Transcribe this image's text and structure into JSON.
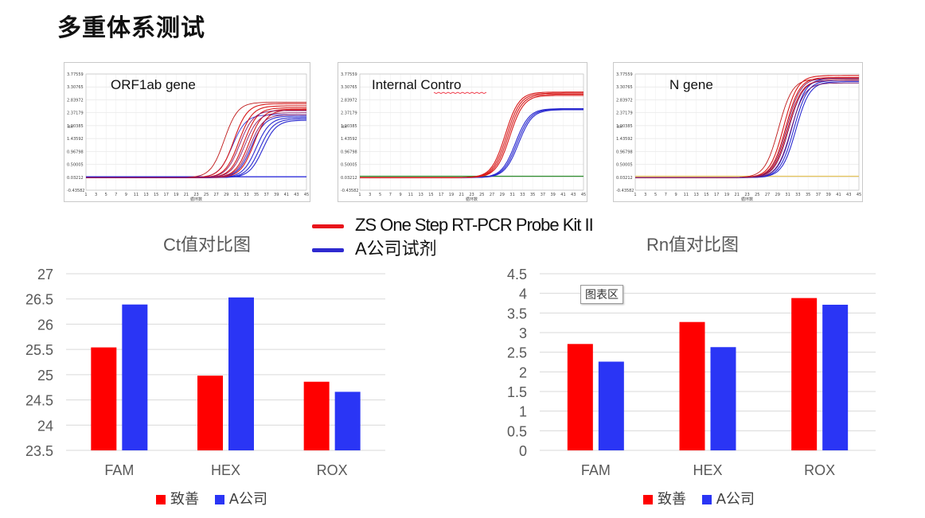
{
  "page_title": "多重体系测试",
  "pcr_panels": [
    {
      "label": "ORF1ab gene"
    },
    {
      "label": "Internal Contro"
    },
    {
      "label": "N gene"
    }
  ],
  "pcr_axis": {
    "y_ticks": [
      "3.77559",
      "3.30765",
      "2.83972",
      "2.37179",
      "1.90385",
      "1.43592",
      "0.96798",
      "0.50005",
      "0.03212",
      "-0.43582"
    ],
    "x_ticks": [
      "1",
      "3",
      "5",
      "7",
      "9",
      "11",
      "13",
      "15",
      "17",
      "19",
      "21",
      "23",
      "25",
      "27",
      "29",
      "31",
      "33",
      "35",
      "37",
      "39",
      "41",
      "43",
      "45"
    ],
    "ylabel": "Rn",
    "xlabel": "循环数"
  },
  "main_legend": {
    "items": [
      {
        "label": "ZS One Step RT-PCR Probe Kit II",
        "color": "#e8141b"
      },
      {
        "label": "A公司试剂",
        "color": "#2e2ad0"
      }
    ]
  },
  "colors": {
    "zs": "#ff0000",
    "a": "#2a35f5",
    "grid": "#d9d9d9",
    "axis_text": "#595959"
  },
  "chart_area_tag": "图表区",
  "chart_data": [
    {
      "type": "bar",
      "title": "Ct值对比图",
      "categories": [
        "FAM",
        "HEX",
        "ROX"
      ],
      "series": [
        {
          "name": "致善",
          "values": [
            25.54,
            24.98,
            24.86
          ]
        },
        {
          "name": "A公司",
          "values": [
            26.39,
            26.53,
            24.66
          ]
        }
      ],
      "ylim": [
        23.5,
        27
      ],
      "y_ticks": [
        "27",
        "26.5",
        "26",
        "25.5",
        "25",
        "24.5",
        "24",
        "23.5"
      ],
      "grid": true,
      "legend": "bottom"
    },
    {
      "type": "bar",
      "title": "Rn值对比图",
      "categories": [
        "FAM",
        "HEX",
        "ROX"
      ],
      "series": [
        {
          "name": "致善",
          "values": [
            2.71,
            3.27,
            3.88
          ]
        },
        {
          "name": "A公司",
          "values": [
            2.26,
            2.63,
            3.71
          ]
        }
      ],
      "ylim": [
        0,
        4.5
      ],
      "y_ticks": [
        "4.5",
        "4",
        "3.5",
        "3",
        "2.5",
        "2",
        "1.5",
        "1",
        "0.5",
        "0"
      ],
      "grid": true,
      "legend": "bottom"
    }
  ]
}
